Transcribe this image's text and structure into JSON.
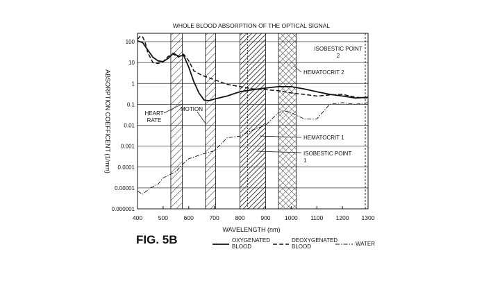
{
  "figure_label": "FIG. 5B",
  "chart_data": {
    "type": "line",
    "title": "WHOLE BLOOD ABSORPTION OF THE OPTICAL SIGNAL",
    "xlabel": "WAVELENGTH (nm)",
    "ylabel": "ABSORPTION COEFFICENT (1/mm)",
    "xlim": [
      400,
      1300
    ],
    "ylim": [
      1e-06,
      200
    ],
    "y_scale": "log",
    "grid": true,
    "x_ticks": [
      400,
      500,
      600,
      700,
      800,
      900,
      1000,
      1100,
      1200,
      1300
    ],
    "y_ticks": [
      {
        "value": 100,
        "label": "100"
      },
      {
        "value": 10,
        "label": "10"
      },
      {
        "value": 1,
        "label": "1"
      },
      {
        "value": 0.1,
        "label": "0.1"
      },
      {
        "value": 0.01,
        "label": "0.01"
      },
      {
        "value": 0.001,
        "label": "0.001"
      },
      {
        "value": 0.0001,
        "label": "0.0001"
      },
      {
        "value": 1e-05,
        "label": "0.00001"
      },
      {
        "value": 1e-06,
        "label": "0.000001"
      }
    ],
    "bands": [
      {
        "label": "HEART RATE",
        "x_start": 530,
        "x_end": 575,
        "pattern": "hatch-light"
      },
      {
        "label": "MOTION",
        "x_start": 665,
        "x_end": 705,
        "pattern": "hatch-light"
      },
      {
        "label": "HEMATOCRIT 1",
        "x_start": 800,
        "x_end": 900,
        "pattern": "hatch-dense"
      },
      {
        "label": "HEMATOCRIT 2",
        "x_start": 950,
        "x_end": 1020,
        "pattern": "crosshatch"
      }
    ],
    "annotations": [
      {
        "label": "ISOBESTIC POINT 1",
        "x": 830
      },
      {
        "label": "ISOBESTIC POINT 2",
        "x": 1300
      }
    ],
    "series": [
      {
        "name": "OXYGENATED BLOOD",
        "style": "solid",
        "x": [
          400,
          420,
          440,
          460,
          480,
          500,
          520,
          540,
          560,
          580,
          600,
          620,
          640,
          660,
          680,
          700,
          750,
          800,
          850,
          900,
          950,
          1000,
          1050,
          1100,
          1150,
          1200,
          1250,
          1300
        ],
        "y": [
          110,
          90,
          40,
          18,
          12,
          11,
          16,
          28,
          20,
          22,
          6,
          1.2,
          0.35,
          0.16,
          0.15,
          0.18,
          0.25,
          0.4,
          0.5,
          0.6,
          0.7,
          0.7,
          0.55,
          0.4,
          0.3,
          0.25,
          0.2,
          0.22
        ]
      },
      {
        "name": "DEOXYGENATED BLOOD",
        "style": "dashed",
        "x": [
          400,
          410,
          420,
          430,
          440,
          460,
          480,
          500,
          520,
          540,
          560,
          580,
          600,
          620,
          650,
          700,
          750,
          800,
          850,
          900,
          950,
          1000,
          1050,
          1100,
          1150,
          1200,
          1250,
          1300
        ],
        "y": [
          130,
          180,
          170,
          90,
          30,
          10,
          9,
          11,
          20,
          25,
          18,
          25,
          12,
          4,
          2.5,
          1.5,
          0.9,
          0.7,
          0.55,
          0.5,
          0.45,
          0.35,
          0.3,
          0.25,
          0.28,
          0.3,
          0.22,
          0.2
        ]
      },
      {
        "name": "WATER",
        "style": "dash-dot",
        "x": [
          400,
          420,
          450,
          480,
          500,
          520,
          550,
          580,
          600,
          650,
          700,
          750,
          800,
          850,
          900,
          950,
          970,
          1000,
          1050,
          1100,
          1150,
          1200,
          1250,
          1300
        ],
        "y": [
          7e-06,
          5e-06,
          1e-05,
          1.5e-05,
          3e-05,
          4e-05,
          6e-05,
          0.00015,
          0.00025,
          0.0004,
          0.0006,
          0.0025,
          0.003,
          0.006,
          0.01,
          0.04,
          0.05,
          0.04,
          0.02,
          0.02,
          0.1,
          0.12,
          0.1,
          0.12
        ]
      }
    ]
  }
}
